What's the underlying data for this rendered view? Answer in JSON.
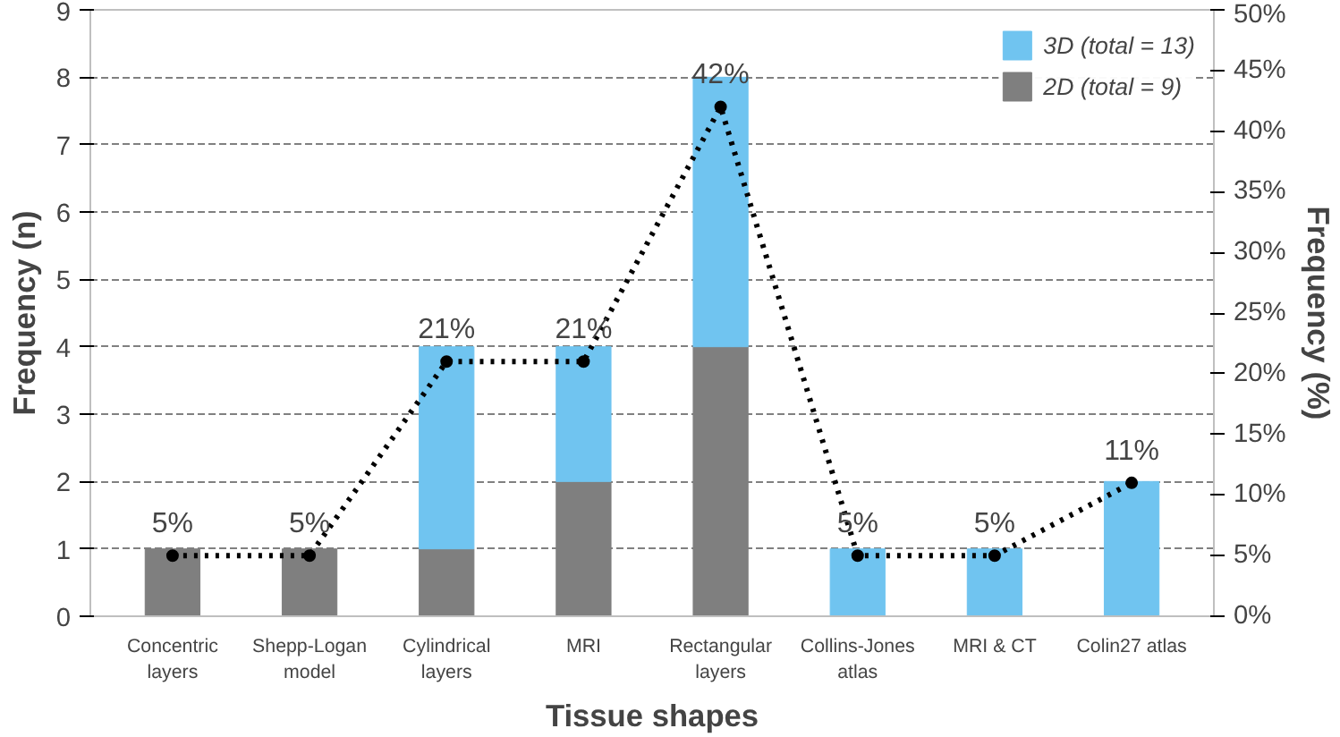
{
  "chart_data": {
    "type": "bar",
    "stacked": true,
    "xlabel": "Tissue shapes",
    "ylabel": "Frequency (n)",
    "y2label": "Frequency (%)",
    "categories": [
      "Concentric\nlayers",
      "Shepp-Logan\nmodel",
      "Cylindrical\nlayers",
      "MRI",
      "Rectangular\nlayers",
      "Collins-Jones\natlas",
      "MRI & CT",
      "Colin27 atlas"
    ],
    "series": [
      {
        "name": "2D (total = 9)",
        "color": "#7f7f7f",
        "values": [
          1,
          1,
          1,
          2,
          4,
          0,
          0,
          0
        ]
      },
      {
        "name": "3D (total = 13)",
        "color": "#70c4f0",
        "values": [
          0,
          0,
          3,
          2,
          4,
          1,
          1,
          2
        ]
      },
      {
        "type": "line",
        "axis": "y2",
        "color": "#000000",
        "marker": "circle",
        "line_style": "dotted",
        "values": [
          5,
          5,
          21,
          21,
          42,
          5,
          5,
          11
        ],
        "value_labels": [
          "5%",
          "5%",
          "21%",
          "21%",
          "42%",
          "5%",
          "5%",
          "11%"
        ]
      }
    ],
    "ylim": [
      0,
      9
    ],
    "yticks": [
      0,
      1,
      2,
      3,
      4,
      5,
      6,
      7,
      8,
      9
    ],
    "y2lim": [
      0,
      50
    ],
    "y2ticks": [
      {
        "value": 0,
        "label": "0%"
      },
      {
        "value": 5,
        "label": "5%"
      },
      {
        "value": 10,
        "label": "10%"
      },
      {
        "value": 15,
        "label": "15%"
      },
      {
        "value": 20,
        "label": "20%"
      },
      {
        "value": 25,
        "label": "25%"
      },
      {
        "value": 30,
        "label": "30%"
      },
      {
        "value": 35,
        "label": "35%"
      },
      {
        "value": 40,
        "label": "40%"
      },
      {
        "value": 45,
        "label": "45%"
      },
      {
        "value": 50,
        "label": "50%"
      }
    ],
    "grid": "y",
    "legend": "top right"
  }
}
